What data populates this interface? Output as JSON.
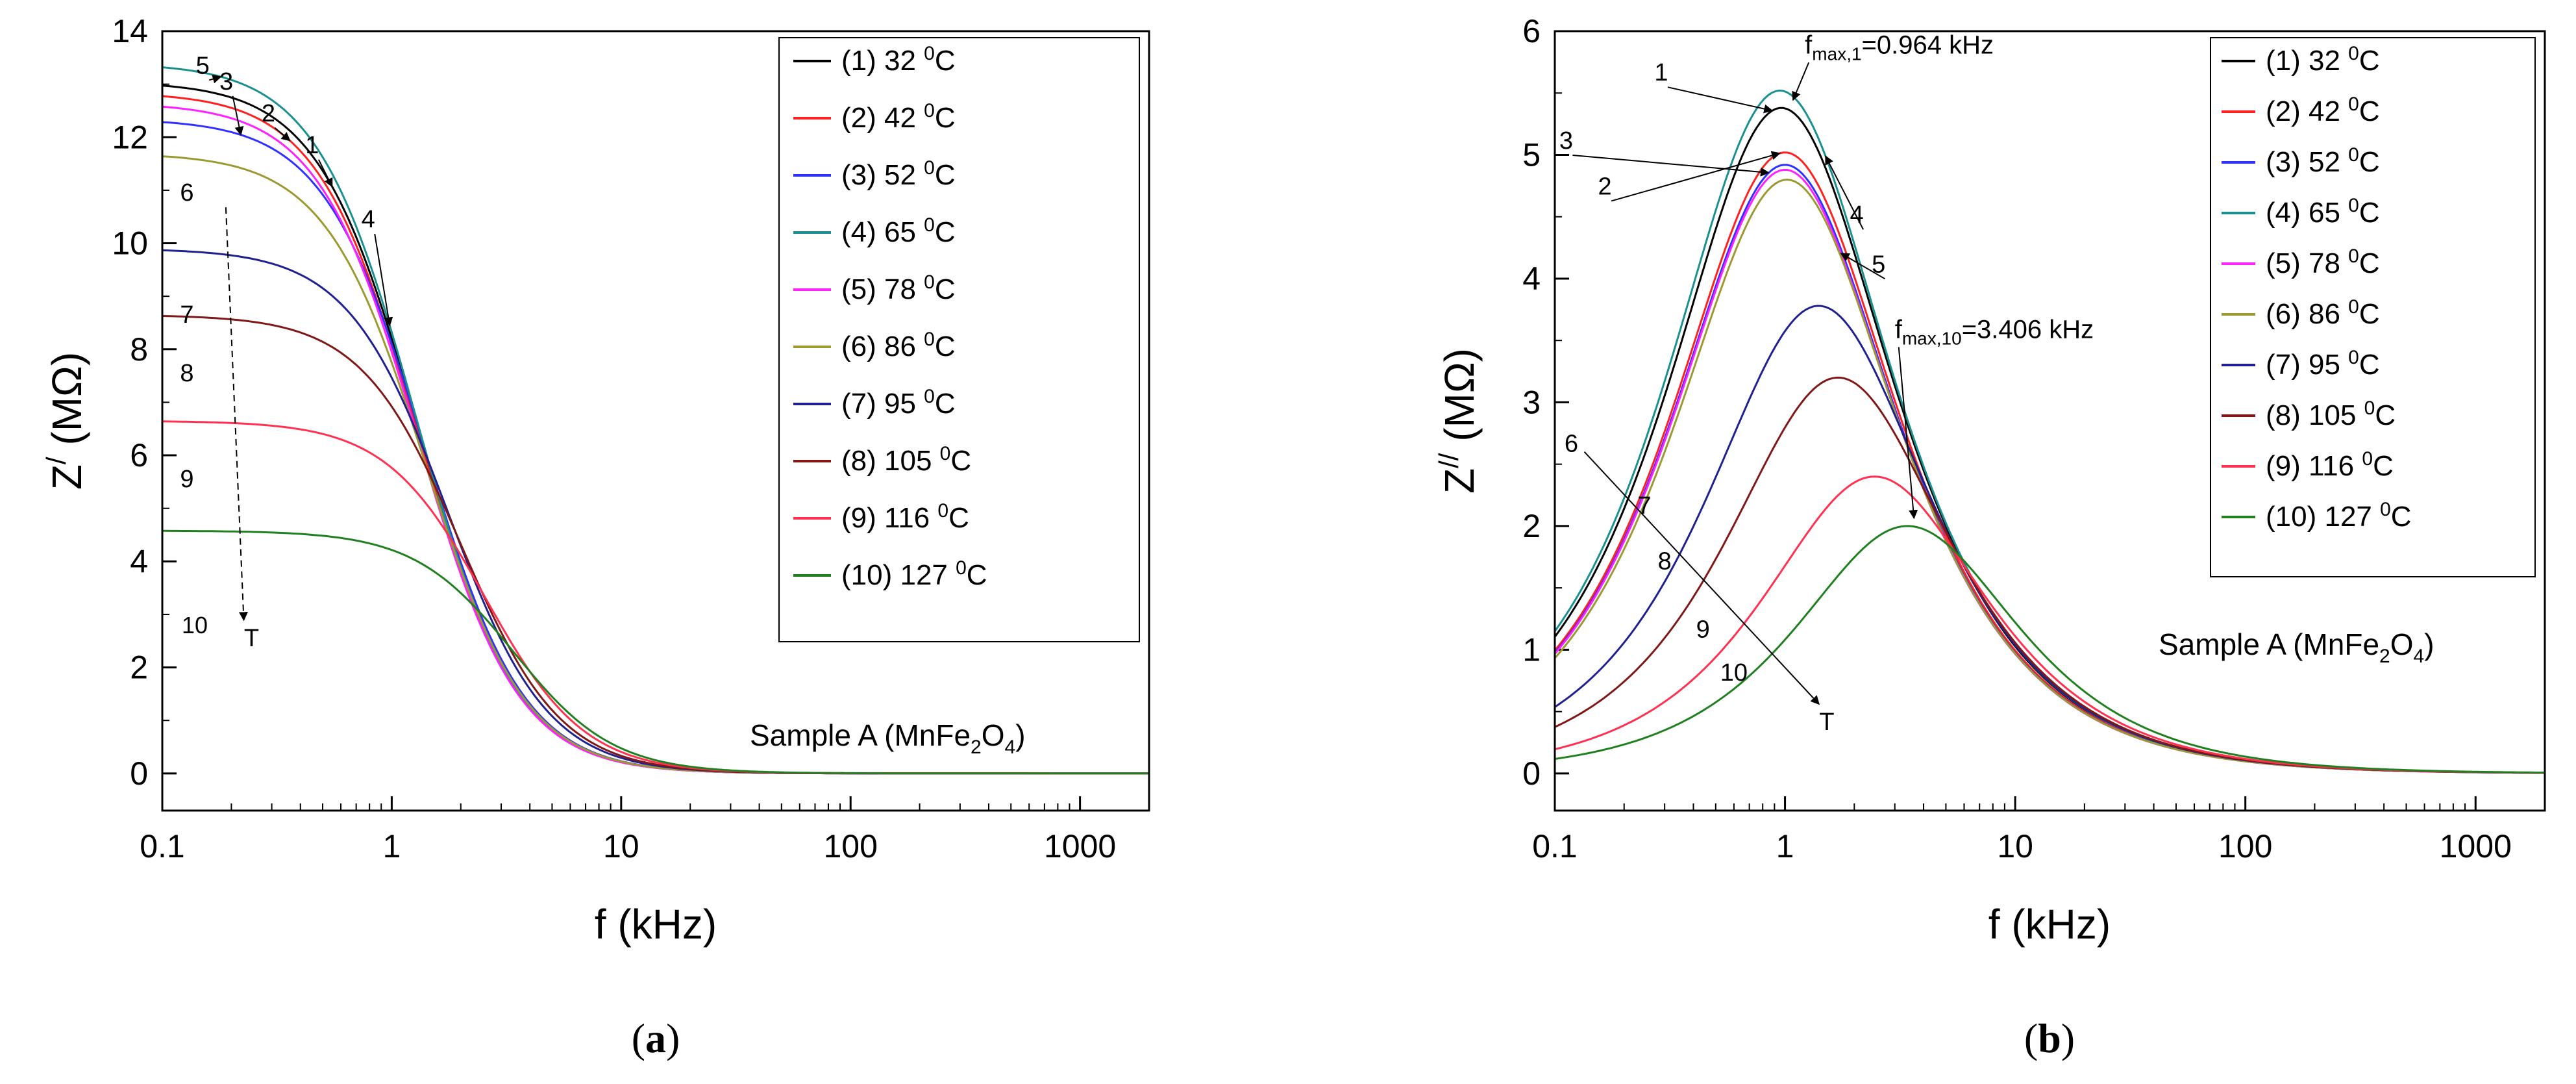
{
  "chart_data": [
    {
      "type": "line",
      "panel_id": "a",
      "caption_letter": "a",
      "y_main": "Z",
      "y_sup": "/",
      "y_unit": " (MΩ)",
      "xlabel": "f (kHz)",
      "xscale": "log",
      "xlim": [
        0.1,
        2000
      ],
      "ylim": [
        -0.7,
        14
      ],
      "x_ticks": [
        0.1,
        1,
        10,
        100,
        1000
      ],
      "x_tick_labels": [
        "0.1",
        "1",
        "10",
        "100",
        "1000"
      ],
      "y_ticks": [
        0,
        2,
        4,
        6,
        8,
        10,
        12,
        14
      ],
      "y_tick_labels": [
        "0",
        "2",
        "4",
        "6",
        "8",
        "10",
        "12",
        "14"
      ],
      "sample_label": {
        "prefix": "Sample A (MnFe",
        "sub1": "2",
        "mid": "O",
        "sub2": "4",
        "suffix": ")"
      },
      "series": [
        {
          "name": "(1) 32",
          "color": "#000000",
          "model": "real",
          "A": 13.05,
          "fc": 1.3
        },
        {
          "name": "(2) 42",
          "color": "#ff2020",
          "model": "real",
          "A": 12.85,
          "fc": 1.3
        },
        {
          "name": "(3) 52",
          "color": "#3030ff",
          "model": "real",
          "A": 12.35,
          "fc": 1.38
        },
        {
          "name": "(4) 65",
          "color": "#1a9090",
          "model": "real",
          "A": 13.4,
          "fc": 1.28
        },
        {
          "name": "(5) 78",
          "color": "#ff20ff",
          "model": "real",
          "A": 12.65,
          "fc": 1.3
        },
        {
          "name": "(6) 86",
          "color": "#9a9a30",
          "model": "real",
          "A": 11.7,
          "fc": 1.4
        },
        {
          "name": "(7) 95",
          "color": "#202090",
          "model": "real",
          "A": 9.9,
          "fc": 1.75
        },
        {
          "name": "(8) 105",
          "color": "#801818",
          "model": "real",
          "A": 8.65,
          "fc": 2.0
        },
        {
          "name": "(9) 116",
          "color": "#ff3050",
          "model": "real",
          "A": 6.65,
          "fc": 2.55
        },
        {
          "name": "(10) 127",
          "color": "#208020",
          "model": "real",
          "A": 4.58,
          "fc": 3.4
        }
      ],
      "curve_labels": [
        {
          "text": "5",
          "x": 0.15,
          "y": 13.2
        },
        {
          "text": "3",
          "x": 0.19,
          "y": 12.9
        },
        {
          "text": "2",
          "x": 0.29,
          "y": 12.3
        },
        {
          "text": "1",
          "x": 0.45,
          "y": 11.7
        },
        {
          "text": "4",
          "x": 0.79,
          "y": 10.3
        },
        {
          "text": "6",
          "x": 0.128,
          "y": 10.8
        },
        {
          "text": "7",
          "x": 0.128,
          "y": 8.5
        },
        {
          "text": "8",
          "x": 0.128,
          "y": 7.4
        },
        {
          "text": "9",
          "x": 0.128,
          "y": 5.4
        },
        {
          "text": "10",
          "x": 0.133,
          "y": 3.3
        },
        {
          "text": "T",
          "x": 0.245,
          "y": 2.4
        }
      ],
      "legend_unit_sup": "0",
      "legend_unit": "C"
    },
    {
      "type": "line",
      "panel_id": "b",
      "caption_letter": "b",
      "y_main": "Z",
      "y_sup": "//",
      "y_unit": " (MΩ)",
      "xlabel": "f (kHz)",
      "xscale": "log",
      "xlim": [
        0.1,
        2000
      ],
      "ylim": [
        -0.3,
        6
      ],
      "x_ticks": [
        0.1,
        1,
        10,
        100,
        1000
      ],
      "x_tick_labels": [
        "0.1",
        "1",
        "10",
        "100",
        "1000"
      ],
      "y_ticks": [
        0,
        1,
        2,
        3,
        4,
        5,
        6
      ],
      "y_tick_labels": [
        "0",
        "1",
        "2",
        "3",
        "4",
        "5",
        "6"
      ],
      "sample_label": {
        "prefix": "Sample A (MnFe",
        "sub1": "2",
        "mid": "O",
        "sub2": "4",
        "suffix": ")"
      },
      "series": [
        {
          "name": "(1) 32",
          "color": "#000000",
          "model": "imag",
          "peak": 5.38,
          "fp": 0.964
        },
        {
          "name": "(2) 42",
          "color": "#ff2020",
          "model": "imag",
          "peak": 5.02,
          "fp": 1.0
        },
        {
          "name": "(3) 52",
          "color": "#3030ff",
          "model": "imag",
          "peak": 4.92,
          "fp": 1.0
        },
        {
          "name": "(4) 65",
          "color": "#1a9090",
          "model": "imag",
          "peak": 5.52,
          "fp": 0.95
        },
        {
          "name": "(5) 78",
          "color": "#ff20ff",
          "model": "imag",
          "peak": 4.88,
          "fp": 1.0
        },
        {
          "name": "(6) 86",
          "color": "#9a9a30",
          "model": "imag",
          "peak": 4.8,
          "fp": 1.02
        },
        {
          "name": "(7) 95",
          "color": "#202090",
          "model": "imag",
          "peak": 3.78,
          "fp": 1.4
        },
        {
          "name": "(8) 105",
          "color": "#801818",
          "model": "imag",
          "peak": 3.2,
          "fp": 1.7
        },
        {
          "name": "(9) 116",
          "color": "#ff3050",
          "model": "imag",
          "peak": 2.4,
          "fp": 2.45
        },
        {
          "name": "(10) 127",
          "color": "#208020",
          "model": "imag",
          "peak": 2.0,
          "fp": 3.406
        }
      ],
      "curve_labels": [
        {
          "text": "3",
          "x": 0.112,
          "y": 5.05
        },
        {
          "text": "1",
          "x": 0.29,
          "y": 5.6
        },
        {
          "text": "2",
          "x": 0.165,
          "y": 4.68
        },
        {
          "text": "4",
          "x": 2.05,
          "y": 4.45
        },
        {
          "text": "5",
          "x": 2.55,
          "y": 4.05
        },
        {
          "text": "6",
          "x": 0.118,
          "y": 2.6
        },
        {
          "text": "7",
          "x": 0.245,
          "y": 2.1
        },
        {
          "text": "8",
          "x": 0.3,
          "y": 1.65
        },
        {
          "text": "9",
          "x": 0.44,
          "y": 1.1
        },
        {
          "text": "10",
          "x": 0.6,
          "y": 0.75
        },
        {
          "text": "T",
          "x": 1.52,
          "y": 0.35
        }
      ],
      "annotations": [
        {
          "base": "f",
          "sub": "max,1",
          "rest": "=0.964 kHz",
          "x": 1.22,
          "y": 5.82
        },
        {
          "base": "f",
          "sub": "max,10",
          "rest": "=3.406 kHz",
          "x": 3.0,
          "y": 3.52
        }
      ],
      "legend_unit_sup": "0",
      "legend_unit": "C"
    }
  ]
}
